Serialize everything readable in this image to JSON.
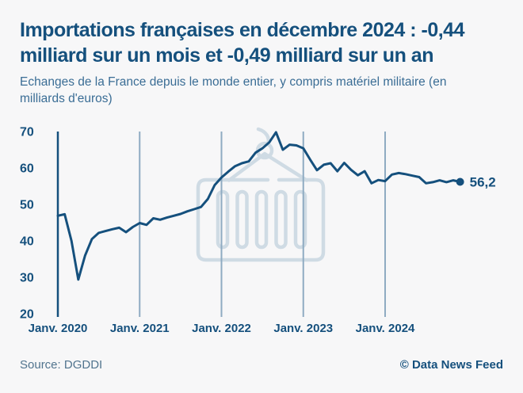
{
  "header": {
    "title_lines": [
      "Importations françaises en décembre 2024 : -0,44",
      "milliard sur un mois et -0,49 milliard sur un an"
    ],
    "subtitle_lines": [
      "Echanges de la France depuis le monde entier, y compris matériel militaire (en",
      "milliards d'euros)"
    ]
  },
  "chart_data": {
    "type": "line",
    "title": "Importations françaises en décembre 2024 : -0,44 milliard sur un mois et -0,49 milliard sur un an",
    "xlabel": "",
    "ylabel": "milliards d'euros",
    "ylim": [
      20,
      70
    ],
    "y_ticks": [
      70,
      60,
      50,
      40,
      30,
      20
    ],
    "x_tick_labels": [
      "Janv. 2020",
      "Janv. 2021",
      "Janv. 2022",
      "Janv. 2023",
      "Janv. 2024"
    ],
    "grid": "vertical-yearly",
    "legend": "none",
    "x_monthly_start": "Janv. 2020",
    "series": [
      {
        "name": "Importations françaises (milliards d'euros)",
        "values": [
          46.9,
          47.3,
          40.0,
          29.4,
          36.0,
          40.5,
          42.2,
          42.7,
          43.2,
          43.6,
          42.4,
          43.8,
          44.9,
          44.4,
          46.2,
          45.8,
          46.4,
          46.9,
          47.4,
          48.1,
          48.7,
          49.3,
          51.5,
          55.3,
          57.4,
          59.0,
          60.5,
          61.3,
          61.8,
          64.2,
          65.4,
          67.0,
          69.8,
          65.0,
          66.4,
          66.2,
          65.4,
          62.3,
          59.4,
          60.9,
          61.3,
          59.1,
          61.4,
          59.5,
          58.0,
          59.1,
          55.8,
          56.7,
          56.4,
          58.2,
          58.6,
          58.3,
          57.9,
          57.5,
          55.8,
          56.1,
          56.6,
          56.1,
          56.6,
          56.2
        ]
      }
    ],
    "end_point_label": "56,2"
  },
  "footer": {
    "source": "Source: DGDDI",
    "credit": "© Data News Feed"
  },
  "icons": {
    "watermark": "container-crane-icon"
  },
  "colors": {
    "background": "#f7f7f8",
    "title": "#15507d",
    "subtitle": "#3a6d95",
    "line": "#15507d",
    "axis": "#15507d",
    "gridline": "#8fabc2",
    "tick_label": "#15507d",
    "end_label": "#15507d",
    "watermark": "#cfdbe4",
    "source": "#51748e",
    "credit": "#15507d"
  }
}
